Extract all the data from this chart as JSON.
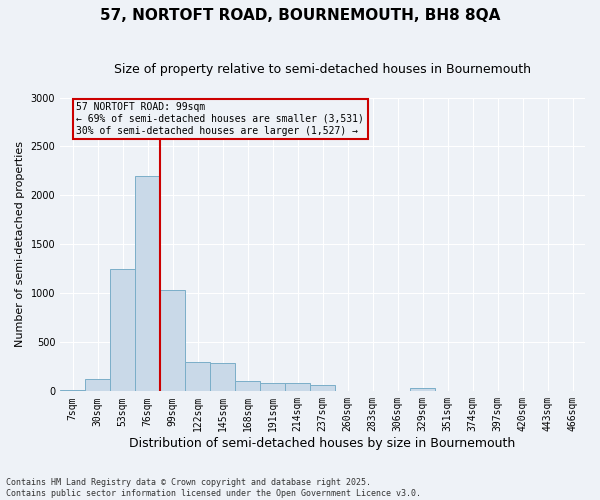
{
  "title": "57, NORTOFT ROAD, BOURNEMOUTH, BH8 8QA",
  "subtitle": "Size of property relative to semi-detached houses in Bournemouth",
  "xlabel": "Distribution of semi-detached houses by size in Bournemouth",
  "ylabel": "Number of semi-detached properties",
  "footnote": "Contains HM Land Registry data © Crown copyright and database right 2025.\nContains public sector information licensed under the Open Government Licence v3.0.",
  "bar_color": "#c9d9e8",
  "bar_edge_color": "#7aaec8",
  "vline_color": "#cc0000",
  "vline_index": 4,
  "annotation_title": "57 NORTOFT ROAD: 99sqm",
  "annotation_line1": "← 69% of semi-detached houses are smaller (3,531)",
  "annotation_line2": "30% of semi-detached houses are larger (1,527) →",
  "annotation_box_color": "#cc0000",
  "categories": [
    "7sqm",
    "30sqm",
    "53sqm",
    "76sqm",
    "99sqm",
    "122sqm",
    "145sqm",
    "168sqm",
    "191sqm",
    "214sqm",
    "237sqm",
    "260sqm",
    "283sqm",
    "306sqm",
    "329sqm",
    "351sqm",
    "374sqm",
    "397sqm",
    "420sqm",
    "443sqm",
    "466sqm"
  ],
  "bar_heights": [
    10,
    130,
    1250,
    2200,
    1030,
    300,
    290,
    110,
    80,
    80,
    60,
    0,
    0,
    0,
    30,
    0,
    0,
    0,
    0,
    0,
    0
  ],
  "ylim": [
    0,
    3000
  ],
  "yticks": [
    0,
    500,
    1000,
    1500,
    2000,
    2500,
    3000
  ],
  "background_color": "#eef2f7",
  "grid_color": "#ffffff",
  "title_fontsize": 11,
  "subtitle_fontsize": 9,
  "tick_fontsize": 7,
  "ylabel_fontsize": 8,
  "xlabel_fontsize": 9,
  "footnote_fontsize": 6
}
